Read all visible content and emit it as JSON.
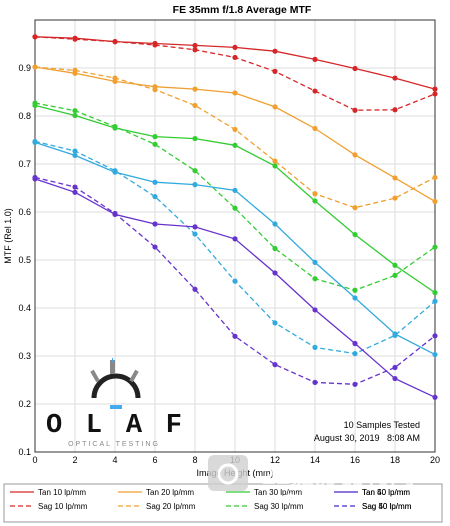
{
  "chart_data": {
    "type": "line",
    "title": "FE 35mm f/1.8 Average MTF",
    "xlabel": "Image Height (mm)",
    "ylabel": "MTF (Rel 1.0)",
    "xlim": [
      0,
      20
    ],
    "ylim": [
      0.1,
      1.0
    ],
    "xticks": [
      0,
      2,
      4,
      6,
      8,
      10,
      12,
      14,
      16,
      18,
      20
    ],
    "yticks": [
      0.1,
      0.2,
      0.3,
      0.4,
      0.5,
      0.6,
      0.7,
      0.8,
      0.9
    ],
    "x": [
      0,
      2,
      4,
      6,
      8,
      10,
      12,
      14,
      16,
      18,
      20
    ],
    "grid": true,
    "legend_position": "bottom",
    "notes": [
      "10 Samples Tested",
      "August 30, 2019   8:08 AM"
    ],
    "series": [
      {
        "name": "Tan 10 lp/mm",
        "color": "#d62728",
        "dash": false,
        "values": [
          0.965,
          0.962,
          0.955,
          0.951,
          0.947,
          0.943,
          0.935,
          0.918,
          0.899,
          0.879,
          0.856
        ]
      },
      {
        "name": "Sag 10 lp/mm",
        "color": "#d62728",
        "dash": true,
        "values": [
          0.965,
          0.96,
          0.955,
          0.948,
          0.938,
          0.922,
          0.893,
          0.852,
          0.812,
          0.813,
          0.846
        ]
      },
      {
        "name": "Tan 20 lp/mm",
        "color": "#f0a030",
        "dash": false,
        "values": [
          0.902,
          0.889,
          0.872,
          0.861,
          0.856,
          0.848,
          0.819,
          0.774,
          0.719,
          0.671,
          0.622
        ]
      },
      {
        "name": "Sag 20 lp/mm",
        "color": "#f0a030",
        "dash": true,
        "values": [
          0.902,
          0.895,
          0.879,
          0.855,
          0.822,
          0.772,
          0.706,
          0.638,
          0.609,
          0.629,
          0.672
        ]
      },
      {
        "name": "Tan 30 lp/mm",
        "color": "#33cc33",
        "dash": false,
        "values": [
          0.822,
          0.801,
          0.775,
          0.757,
          0.753,
          0.739,
          0.696,
          0.623,
          0.553,
          0.489,
          0.432
        ]
      },
      {
        "name": "Sag 30 lp/mm",
        "color": "#33cc33",
        "dash": true,
        "values": [
          0.827,
          0.811,
          0.778,
          0.741,
          0.686,
          0.608,
          0.524,
          0.461,
          0.437,
          0.468,
          0.527
        ]
      },
      {
        "name": "Tan 40 lp/mm",
        "color": "#33aadd",
        "dash": false,
        "values": [
          0.745,
          0.718,
          0.683,
          0.662,
          0.657,
          0.645,
          0.575,
          0.495,
          0.421,
          0.346,
          0.303
        ]
      },
      {
        "name": "Sag 40 lp/mm",
        "color": "#33aadd",
        "dash": true,
        "values": [
          0.747,
          0.727,
          0.686,
          0.632,
          0.554,
          0.456,
          0.369,
          0.318,
          0.305,
          0.343,
          0.414
        ]
      },
      {
        "name": "Tan 50 lp/mm",
        "color": "#6633cc",
        "dash": false,
        "values": [
          0.669,
          0.641,
          0.595,
          0.575,
          0.569,
          0.544,
          0.473,
          0.396,
          0.326,
          0.253,
          0.214
        ]
      },
      {
        "name": "Sag 50 lp/mm",
        "color": "#6633cc",
        "dash": true,
        "values": [
          0.672,
          0.652,
          0.597,
          0.527,
          0.439,
          0.341,
          0.282,
          0.245,
          0.241,
          0.276,
          0.342
        ]
      }
    ]
  },
  "logo": {
    "letters": "OLAF",
    "subtitle": "OPTICAL TESTING"
  },
  "watermark": {
    "text1": "21摄影器材网",
    "text2": "www.21cantonfair.com"
  }
}
